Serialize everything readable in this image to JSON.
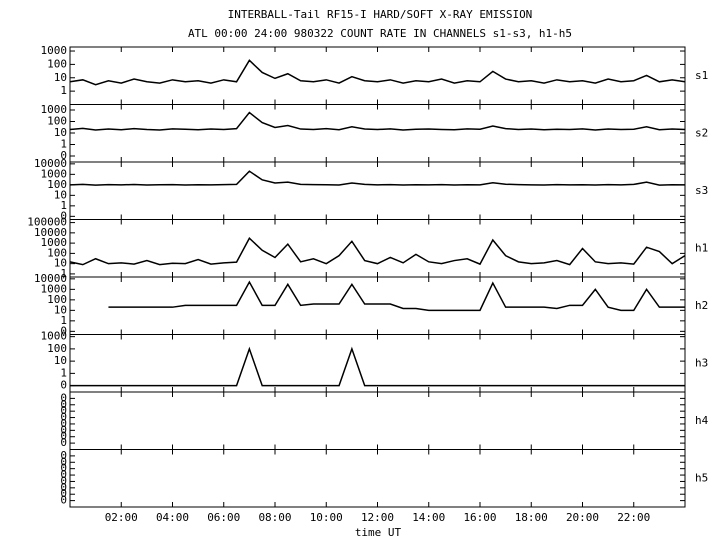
{
  "title": "INTERBALL-Tail RF15-I HARD/SOFT X-RAY EMISSION",
  "subtitle": "ATL 00:00 24:00 980322  COUNT RATE IN CHANNELS s1-s3, h1-h5",
  "xlabel": "time UT",
  "xlim": [
    0,
    24
  ],
  "xticks": [
    {
      "value": 2,
      "label": "02:00"
    },
    {
      "value": 4,
      "label": "04:00"
    },
    {
      "value": 6,
      "label": "06:00"
    },
    {
      "value": 8,
      "label": "08:00"
    },
    {
      "value": 10,
      "label": "10:00"
    },
    {
      "value": 12,
      "label": "12:00"
    },
    {
      "value": 14,
      "label": "14:00"
    },
    {
      "value": 16,
      "label": "16:00"
    },
    {
      "value": 18,
      "label": "18:00"
    },
    {
      "value": 20,
      "label": "20:00"
    },
    {
      "value": 22,
      "label": "22:00"
    }
  ],
  "chart_data": [
    {
      "type": "line",
      "label": "s1",
      "log": true,
      "color": "#000000",
      "ylim": [
        0.1,
        2000
      ],
      "yticks": [
        1000,
        100,
        10,
        1
      ],
      "x": [
        0,
        0.5,
        1,
        1.5,
        2,
        2.5,
        3,
        3.5,
        4,
        4.5,
        5,
        5.5,
        6,
        6.5,
        7,
        7.5,
        8,
        8.5,
        9,
        9.5,
        10,
        10.5,
        11,
        11.5,
        12,
        12.5,
        13,
        13.5,
        14,
        14.5,
        15,
        15.5,
        16,
        16.5,
        17,
        17.5,
        18,
        18.5,
        19,
        19.5,
        20,
        20.5,
        21,
        21.5,
        22,
        22.5,
        23,
        23.5,
        24
      ],
      "values": [
        5,
        7,
        3,
        6,
        4,
        8,
        5,
        4,
        7,
        5,
        6,
        4,
        7,
        5,
        200,
        25,
        9,
        20,
        6,
        5,
        7,
        4,
        12,
        6,
        5,
        7,
        4,
        6,
        5,
        8,
        4,
        6,
        5,
        30,
        8,
        5,
        6,
        4,
        7,
        5,
        6,
        4,
        8,
        5,
        6,
        15,
        5,
        7,
        5
      ]
    },
    {
      "type": "line",
      "label": "s2",
      "log": true,
      "color": "#000000",
      "ylim": [
        0.03,
        3000
      ],
      "yticks": [
        1000,
        100,
        10,
        1,
        {
          "value": 0.1,
          "label": "0"
        }
      ],
      "x": [
        0,
        0.5,
        1,
        1.5,
        2,
        2.5,
        3,
        3.5,
        4,
        4.5,
        5,
        5.5,
        6,
        6.5,
        7,
        7.5,
        8,
        8.5,
        9,
        9.5,
        10,
        10.5,
        11,
        11.5,
        12,
        12.5,
        13,
        13.5,
        14,
        14.5,
        15,
        15.5,
        16,
        16.5,
        17,
        17.5,
        18,
        18.5,
        19,
        19.5,
        20,
        20.5,
        21,
        21.5,
        22,
        22.5,
        23,
        23.5,
        24
      ],
      "values": [
        20,
        25,
        18,
        22,
        19,
        24,
        20,
        18,
        23,
        21,
        19,
        22,
        20,
        24,
        600,
        80,
        30,
        45,
        22,
        20,
        24,
        19,
        35,
        22,
        20,
        23,
        18,
        21,
        22,
        20,
        19,
        23,
        21,
        40,
        24,
        20,
        22,
        19,
        21,
        20,
        23,
        18,
        22,
        20,
        21,
        35,
        19,
        22,
        20
      ]
    },
    {
      "type": "line",
      "label": "s3",
      "log": true,
      "color": "#000000",
      "ylim": [
        0.05,
        15000
      ],
      "yticks": [
        10000,
        1000,
        100,
        10,
        1,
        {
          "value": 0.1,
          "label": "0"
        }
      ],
      "x": [
        0,
        0.5,
        1,
        1.5,
        2,
        2.5,
        3,
        3.5,
        4,
        4.5,
        5,
        5.5,
        6,
        6.5,
        7,
        7.5,
        8,
        8.5,
        9,
        9.5,
        10,
        10.5,
        11,
        11.5,
        12,
        12.5,
        13,
        13.5,
        14,
        14.5,
        15,
        15.5,
        16,
        16.5,
        17,
        17.5,
        18,
        18.5,
        19,
        19.5,
        20,
        20.5,
        21,
        21.5,
        22,
        22.5,
        23,
        23.5,
        24
      ],
      "values": [
        100,
        110,
        95,
        105,
        100,
        108,
        98,
        102,
        106,
        97,
        103,
        100,
        105,
        110,
        2000,
        300,
        150,
        180,
        110,
        105,
        102,
        98,
        150,
        110,
        100,
        104,
        96,
        102,
        100,
        105,
        98,
        103,
        100,
        160,
        115,
        105,
        100,
        98,
        104,
        100,
        102,
        97,
        105,
        100,
        110,
        180,
        95,
        103,
        100
      ]
    },
    {
      "type": "line",
      "label": "h1",
      "log": true,
      "color": "#000000",
      "ylim": [
        0.5,
        200000
      ],
      "yticks": [
        100000,
        10000,
        1000,
        100,
        10,
        1
      ],
      "x": [
        0,
        0.5,
        1,
        1.5,
        2,
        2.5,
        3,
        3.5,
        4,
        4.5,
        5,
        5.5,
        6,
        6.5,
        7,
        7.5,
        8,
        8.5,
        9,
        9.5,
        10,
        10.5,
        11,
        11.5,
        12,
        12.5,
        13,
        13.5,
        14,
        14.5,
        15,
        15.5,
        16,
        16.5,
        17,
        17.5,
        18,
        18.5,
        19,
        19.5,
        20,
        20.5,
        21,
        21.5,
        22,
        22.5,
        23,
        23.5,
        24
      ],
      "values": [
        15,
        8,
        30,
        10,
        12,
        9,
        20,
        8,
        11,
        10,
        25,
        9,
        12,
        14,
        3000,
        200,
        40,
        800,
        15,
        30,
        10,
        60,
        1500,
        20,
        10,
        40,
        12,
        80,
        15,
        10,
        20,
        30,
        9,
        2000,
        60,
        15,
        10,
        12,
        20,
        8,
        300,
        15,
        10,
        12,
        9,
        400,
        150,
        10,
        60
      ]
    },
    {
      "type": "line",
      "label": "h2",
      "log": true,
      "color": "#000000",
      "ylim": [
        0.05,
        15000
      ],
      "yticks": [
        10000,
        1000,
        100,
        10,
        1,
        {
          "value": 0.1,
          "label": "0"
        }
      ],
      "x": [
        0,
        0.5,
        1,
        1.5,
        2,
        2.5,
        3,
        3.5,
        4,
        4.5,
        5,
        5.5,
        6,
        6.5,
        7,
        7.5,
        8,
        8.5,
        9,
        9.5,
        10,
        10.5,
        11,
        11.5,
        12,
        12.5,
        13,
        13.5,
        14,
        14.5,
        15,
        15.5,
        16,
        16.5,
        17,
        17.5,
        18,
        18.5,
        19,
        19.5,
        20,
        20.5,
        21,
        21.5,
        22,
        22.5,
        23,
        23.5,
        24
      ],
      "values": [
        null,
        null,
        null,
        20,
        20,
        20,
        20,
        20,
        20,
        30,
        30,
        30,
        30,
        30,
        5000,
        30,
        30,
        3000,
        30,
        40,
        40,
        40,
        3000,
        40,
        40,
        40,
        15,
        15,
        10,
        10,
        10,
        10,
        10,
        4000,
        20,
        20,
        20,
        20,
        15,
        30,
        30,
        1000,
        20,
        10,
        10,
        1000,
        20,
        20,
        20
      ]
    },
    {
      "type": "line",
      "label": "h3",
      "log": true,
      "color": "#000000",
      "ylim": [
        0.03,
        1500
      ],
      "yticks": [
        1000,
        100,
        10,
        1,
        {
          "value": 0.1,
          "label": "0"
        }
      ],
      "x": [
        0,
        0.5,
        1,
        1.5,
        2,
        2.5,
        3,
        3.5,
        4,
        4.5,
        5,
        5.5,
        6,
        6.5,
        7,
        7.5,
        8,
        8.5,
        9,
        9.5,
        10,
        10.5,
        11,
        11.5,
        12,
        12.5,
        13,
        13.5,
        14,
        14.5,
        15,
        15.5,
        16,
        16.5,
        17,
        17.5,
        18,
        18.5,
        19,
        19.5,
        20,
        20.5,
        21,
        21.5,
        22,
        22.5,
        23,
        23.5,
        24
      ],
      "values": [
        0.1,
        0.1,
        0.1,
        0.1,
        0.1,
        0.1,
        0.1,
        0.1,
        0.1,
        0.1,
        0.1,
        0.1,
        0.1,
        0.1,
        100,
        0.1,
        0.1,
        0.1,
        0.1,
        0.1,
        0.1,
        0.1,
        100,
        0.1,
        0.1,
        0.1,
        0.1,
        0.1,
        0.1,
        0.1,
        0.1,
        0.1,
        0.1,
        0.1,
        0.1,
        0.1,
        0.1,
        0.1,
        0.1,
        0.1,
        0.1,
        0.1,
        0.1,
        0.1,
        0.1,
        0.1,
        0.1,
        0.1,
        0.1
      ]
    },
    {
      "type": "line",
      "label": "h4",
      "log": true,
      "color": "#000000",
      "ylim": [
        1e-09,
        1
      ],
      "yticks": [
        {
          "value": 0.1,
          "label": "0"
        },
        {
          "value": 0.01,
          "label": "0"
        },
        {
          "value": 0.001,
          "label": "0"
        },
        {
          "value": 0.0001,
          "label": "0"
        },
        {
          "value": 1e-05,
          "label": "0"
        },
        {
          "value": 1e-06,
          "label": "0"
        },
        {
          "value": 1e-07,
          "label": "0"
        },
        {
          "value": 1e-08,
          "label": "0"
        }
      ]
    },
    {
      "type": "line",
      "label": "h5",
      "log": true,
      "color": "#000000",
      "ylim": [
        1e-09,
        1
      ],
      "yticks": [
        {
          "value": 0.1,
          "label": "0"
        },
        {
          "value": 0.01,
          "label": "0"
        },
        {
          "value": 0.001,
          "label": "0"
        },
        {
          "value": 0.0001,
          "label": "0"
        },
        {
          "value": 1e-05,
          "label": "0"
        },
        {
          "value": 1e-06,
          "label": "0"
        },
        {
          "value": 1e-07,
          "label": "0"
        },
        {
          "value": 1e-08,
          "label": "0"
        }
      ]
    }
  ]
}
